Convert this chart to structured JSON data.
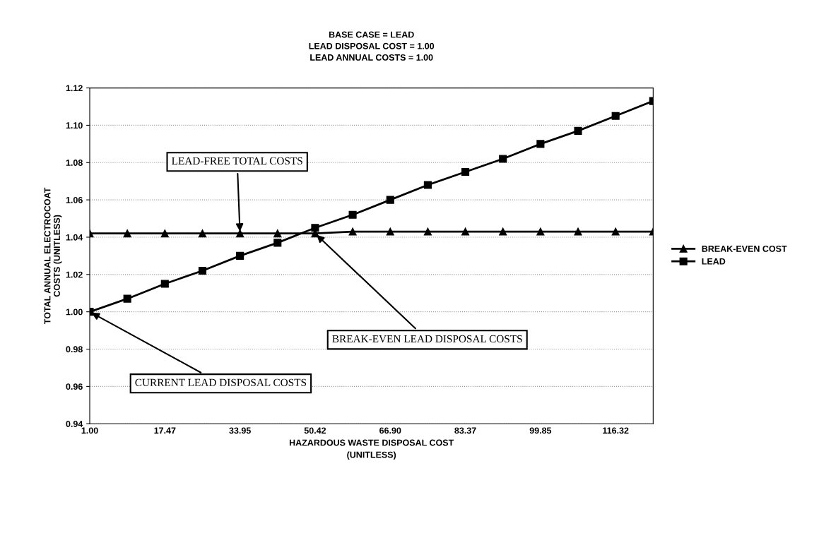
{
  "chart_data": {
    "type": "line",
    "title": "BASE CASE = LEAD\nLEAD DISPOSAL COST = 1.00\nLEAD ANNUAL COSTS = 1.00",
    "xlabel": "HAZARDOUS WASTE DISPOSAL COST\n(UNITLESS)",
    "ylabel": "TOTAL ANNUAL ELECTROCOAT\nCOSTS (UNITLESS)",
    "categories": [
      "1.00",
      null,
      "17.47",
      null,
      "33.95",
      null,
      "50.42",
      null,
      "66.90",
      null,
      "83.37",
      null,
      "99.85",
      null,
      "116.32",
      null
    ],
    "series": [
      {
        "name": "BREAK-EVEN COST",
        "color": "#000000",
        "marker": "triangle",
        "values": [
          1.042,
          1.042,
          1.042,
          1.042,
          1.042,
          1.042,
          1.042,
          1.043,
          1.043,
          1.043,
          1.043,
          1.043,
          1.043,
          1.043,
          1.043,
          1.043
        ]
      },
      {
        "name": "LEAD",
        "color": "#000000",
        "marker": "square",
        "values": [
          1.0,
          1.007,
          1.015,
          1.022,
          1.03,
          1.037,
          1.045,
          1.052,
          1.06,
          1.068,
          1.075,
          1.082,
          1.09,
          1.097,
          1.105,
          1.113
        ]
      }
    ],
    "ylim": [
      0.94,
      1.12
    ],
    "yticks": [
      {
        "value": 0.94,
        "label": "0.94"
      },
      {
        "value": 0.96,
        "label": "0.96"
      },
      {
        "value": 0.98,
        "label": "0.98"
      },
      {
        "value": 1.0,
        "label": "1.00"
      },
      {
        "value": 1.02,
        "label": "1.02"
      },
      {
        "value": 1.04,
        "label": "1.04"
      },
      {
        "value": 1.06,
        "label": "1.06"
      },
      {
        "value": 1.08,
        "label": "1.08"
      },
      {
        "value": 1.1,
        "label": "1.10"
      },
      {
        "value": 1.12,
        "label": "1.12"
      }
    ],
    "annotations": [
      {
        "text": "LEAD-FREE TOTAL COSTS",
        "x": "33.95",
        "y": 1.042
      },
      {
        "text": "BREAK-EVEN LEAD DISPOSAL COSTS",
        "x": "50.42",
        "y": 1.042
      },
      {
        "text": "CURRENT LEAD DISPOSAL COSTS",
        "x": "1.00",
        "y": 1.0
      }
    ],
    "grid": "y",
    "legend": "right",
    "line_style": "solid"
  }
}
